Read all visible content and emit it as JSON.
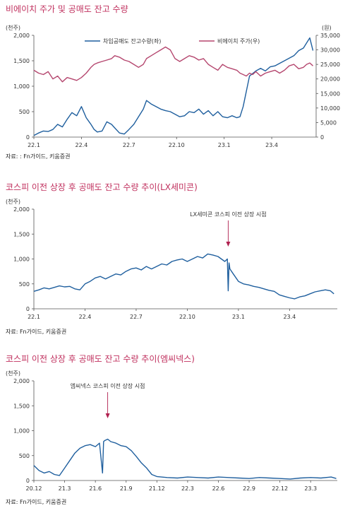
{
  "titles": {
    "c1": "비에이치 주가 및 공매도 잔고 수량",
    "c2": "코스피 이전 상장 후 공매도 잔고 수량 추이(LX세미콘)",
    "c3": "코스피 이전 상장 후 공매도 잔고 수량 추이(엠씨넥스)"
  },
  "sources": {
    "c1": "자료: : Fn가이드, 키움증권",
    "c2": "자료: Fn가이드, 키움증권",
    "c3": "자료: Fn가이드, 키움증권"
  },
  "colors": {
    "title": "#c0305e",
    "series_blue": "#1f5f9e",
    "series_pink": "#b5476f",
    "annot_arrow": "#b0204f"
  },
  "chart_data": [
    {
      "type": "line",
      "title": "비에이치 주가 및 공매도 잔고 수량",
      "unit_left": "(천주)",
      "unit_right": "(원)",
      "x_ticks": [
        "22.1",
        "22.4",
        "22.7",
        "22.10",
        "23.1",
        "23.4"
      ],
      "y_left_ticks": [
        "0",
        "500",
        "1,000",
        "1,500",
        "2,000"
      ],
      "y_right_ticks": [
        "0",
        "5,000",
        "10,000",
        "15,000",
        "20,000",
        "25,000",
        "30,000",
        "35,000"
      ],
      "ylim_left": [
        0,
        2000
      ],
      "ylim_right": [
        0,
        35000
      ],
      "xlim": [
        0,
        17.8
      ],
      "legend_position": "top",
      "series": [
        {
          "name": "차입공매도 잔고수량(좌)",
          "axis": "left",
          "color": "#1f5f9e",
          "x": [
            0,
            0.3,
            0.6,
            0.9,
            1.2,
            1.5,
            1.8,
            2.1,
            2.4,
            2.7,
            3.0,
            3.3,
            3.6,
            3.8,
            4.0,
            4.3,
            4.6,
            4.9,
            5.1,
            5.4,
            5.7,
            6.0,
            6.3,
            6.6,
            6.9,
            7.1,
            7.4,
            7.7,
            8.0,
            8.3,
            8.6,
            8.9,
            9.2,
            9.5,
            9.8,
            10.1,
            10.4,
            10.7,
            11.0,
            11.3,
            11.6,
            11.9,
            12.2,
            12.5,
            12.8,
            13.0,
            13.2,
            13.4,
            13.6,
            13.8,
            14.0,
            14.3,
            14.6,
            14.9,
            15.2,
            15.5,
            15.8,
            16.1,
            16.4,
            16.7,
            17.0,
            17.2,
            17.4,
            17.6
          ],
          "values": [
            30,
            80,
            120,
            110,
            150,
            250,
            200,
            350,
            480,
            420,
            600,
            380,
            250,
            150,
            100,
            120,
            300,
            250,
            180,
            80,
            60,
            150,
            250,
            400,
            550,
            720,
            650,
            600,
            550,
            520,
            500,
            450,
            400,
            420,
            500,
            480,
            550,
            450,
            520,
            420,
            500,
            400,
            380,
            420,
            380,
            400,
            600,
            900,
            1200,
            1250,
            1300,
            1350,
            1300,
            1380,
            1400,
            1450,
            1500,
            1550,
            1600,
            1700,
            1750,
            1850,
            1950,
            1700
          ]
        },
        {
          "name": "비에이치 주가(우)",
          "axis": "right",
          "color": "#b5476f",
          "x": [
            0,
            0.3,
            0.6,
            0.9,
            1.2,
            1.5,
            1.8,
            2.1,
            2.4,
            2.7,
            3.0,
            3.3,
            3.6,
            3.8,
            4.0,
            4.3,
            4.6,
            4.9,
            5.1,
            5.4,
            5.7,
            6.0,
            6.3,
            6.6,
            6.9,
            7.1,
            7.4,
            7.7,
            8.0,
            8.3,
            8.6,
            8.9,
            9.2,
            9.5,
            9.8,
            10.1,
            10.4,
            10.7,
            11.0,
            11.3,
            11.6,
            11.9,
            12.2,
            12.5,
            12.8,
            13.0,
            13.2,
            13.4,
            13.6,
            13.8,
            14.0,
            14.3,
            14.6,
            14.9,
            15.2,
            15.5,
            15.8,
            16.1,
            16.4,
            16.7,
            17.0,
            17.2,
            17.4,
            17.6
          ],
          "values": [
            23000,
            22000,
            21500,
            22500,
            20000,
            21000,
            19000,
            20500,
            20000,
            19500,
            20500,
            22000,
            24000,
            25000,
            25500,
            26000,
            26500,
            27000,
            28000,
            27500,
            26500,
            26000,
            25000,
            24000,
            25000,
            27000,
            28000,
            29000,
            30000,
            31000,
            30000,
            27000,
            26000,
            27000,
            28000,
            27500,
            26500,
            27000,
            25000,
            24000,
            23000,
            25000,
            24000,
            23500,
            23000,
            22000,
            21500,
            21000,
            22000,
            21500,
            22500,
            21000,
            22000,
            22500,
            23000,
            22000,
            23000,
            24500,
            25000,
            23500,
            24000,
            25000,
            25500,
            24500
          ]
        }
      ]
    },
    {
      "type": "line",
      "title": "코스피 이전 상장 후 공매도 잔고 수량 추이(LX세미콘)",
      "unit_left": "(천주)",
      "x_ticks": [
        "22.1",
        "22.4",
        "22.7",
        "22.10",
        "23.1",
        "23.4"
      ],
      "y_ticks": [
        "0",
        "500",
        "1,000",
        "1,500",
        "2,000"
      ],
      "ylim": [
        0,
        2000
      ],
      "xlim": [
        0,
        17.8
      ],
      "annotation": "LX세미콘 코스피 이전 상장 시점",
      "annotation_x": 11.4,
      "series": [
        {
          "name": "",
          "color": "#1f5f9e",
          "x": [
            0,
            0.3,
            0.6,
            0.9,
            1.2,
            1.5,
            1.8,
            2.1,
            2.4,
            2.7,
            3.0,
            3.3,
            3.6,
            3.9,
            4.2,
            4.5,
            4.8,
            5.1,
            5.4,
            5.7,
            6.0,
            6.3,
            6.6,
            6.9,
            7.2,
            7.5,
            7.8,
            8.1,
            8.4,
            8.7,
            9.0,
            9.3,
            9.6,
            9.9,
            10.2,
            10.5,
            10.8,
            11.0,
            11.2,
            11.35,
            11.4,
            11.45,
            11.5,
            11.7,
            12.0,
            12.3,
            12.6,
            12.9,
            13.2,
            13.5,
            13.8,
            14.1,
            14.4,
            14.7,
            15.0,
            15.3,
            15.6,
            15.9,
            16.2,
            16.5,
            16.8,
            17.1,
            17.4,
            17.6
          ],
          "values": [
            350,
            380,
            420,
            400,
            430,
            460,
            440,
            450,
            400,
            380,
            500,
            550,
            620,
            650,
            600,
            650,
            700,
            680,
            750,
            800,
            820,
            780,
            850,
            800,
            850,
            900,
            880,
            950,
            980,
            1000,
            950,
            1000,
            1050,
            1020,
            1100,
            1080,
            1050,
            1000,
            950,
            1000,
            360,
            920,
            800,
            700,
            550,
            500,
            480,
            450,
            430,
            400,
            370,
            350,
            280,
            250,
            220,
            200,
            240,
            260,
            300,
            340,
            360,
            380,
            360,
            300
          ]
        }
      ]
    },
    {
      "type": "line",
      "title": "코스피 이전 상장 후 공매도 잔고 수량 추이(엠씨넥스)",
      "unit_left": "(천주)",
      "x_ticks": [
        "20.12",
        "21.3",
        "21.6",
        "21.9",
        "21.12",
        "22.3",
        "22.6",
        "22.9",
        "22.12",
        "23.3"
      ],
      "y_ticks": [
        "0",
        "500",
        "1,000",
        "1,500",
        "2,000"
      ],
      "ylim": [
        0,
        2000
      ],
      "xlim": [
        0,
        29.6
      ],
      "annotation": "엠씨넥스 코스피 이전 상장 시점",
      "annotation_x": 7.2,
      "series": [
        {
          "name": "",
          "color": "#1f5f9e",
          "x": [
            0,
            0.5,
            1.0,
            1.5,
            2.0,
            2.5,
            3.0,
            3.5,
            4.0,
            4.5,
            5.0,
            5.5,
            6.0,
            6.4,
            6.7,
            6.8,
            6.9,
            7.2,
            7.5,
            8.0,
            8.5,
            9.0,
            9.5,
            10.0,
            10.5,
            11.0,
            11.5,
            12.0,
            13.0,
            14.0,
            15.0,
            16.0,
            17.0,
            18.0,
            19.0,
            20.0,
            21.0,
            22.0,
            23.0,
            24.0,
            25.0,
            26.0,
            27.0,
            28.0,
            29.0,
            29.5
          ],
          "values": [
            300,
            200,
            150,
            180,
            120,
            100,
            250,
            400,
            550,
            650,
            700,
            720,
            680,
            750,
            150,
            780,
            800,
            830,
            780,
            750,
            700,
            680,
            600,
            480,
            350,
            250,
            120,
            80,
            60,
            50,
            70,
            60,
            50,
            70,
            60,
            50,
            40,
            60,
            50,
            40,
            30,
            50,
            60,
            50,
            70,
            40
          ]
        }
      ]
    }
  ]
}
